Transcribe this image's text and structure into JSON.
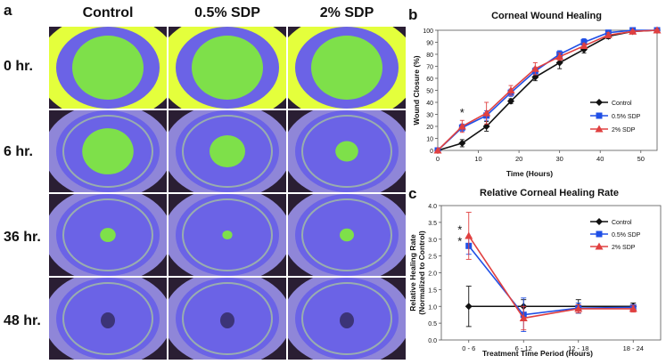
{
  "panel_a": {
    "letter": "a",
    "columns": [
      "Control",
      "0.5% SDP",
      "2% SDP"
    ],
    "rows": [
      "0 hr.",
      "6 hr.",
      "36 hr.",
      "48 hr."
    ],
    "photo_stain_extent": [
      [
        1.0,
        1.0,
        1.0
      ],
      [
        0.72,
        0.5,
        0.32
      ],
      [
        0.22,
        0.14,
        0.2
      ],
      [
        0.0,
        0.0,
        0.0
      ]
    ],
    "colors": {
      "stain": "#7ee04a",
      "iris": "#6b63e6",
      "sclera_halo": "#e4ff3c",
      "dark_bg": "#2a1e33"
    }
  },
  "chart_data": [
    {
      "letter": "b",
      "type": "line",
      "title": "Corneal Wound Healing",
      "xlabel": "Time (Hours)",
      "ylabel": "Wound Closure (%)",
      "xlim": [
        0,
        54
      ],
      "ylim": [
        0,
        100
      ],
      "xticks": [
        "0",
        "10",
        "20",
        "30",
        "40",
        "50"
      ],
      "xtick_values": [
        0,
        10,
        20,
        30,
        40,
        50
      ],
      "yticks": [
        "0",
        "10",
        "20",
        "30",
        "40",
        "50",
        "60",
        "70",
        "80",
        "90",
        "100"
      ],
      "ytick_values": [
        0,
        10,
        20,
        30,
        40,
        50,
        60,
        70,
        80,
        90,
        100
      ],
      "x": [
        0,
        6,
        12,
        18,
        24,
        30,
        36,
        42,
        48,
        54
      ],
      "series": [
        {
          "name": "Control",
          "color": "#111111",
          "marker": "diamond",
          "values": [
            0,
            6,
            20,
            41,
            61,
            73,
            84,
            95,
            99,
            100
          ],
          "errors": [
            0,
            3,
            4,
            2,
            3,
            5,
            3,
            2,
            1,
            1
          ]
        },
        {
          "name": "0.5% SDP",
          "color": "#1f4fe6",
          "marker": "square",
          "values": [
            0,
            19,
            29,
            48,
            66,
            80,
            90,
            98,
            100,
            100
          ],
          "errors": [
            0,
            3,
            4,
            3,
            3,
            3,
            3,
            2,
            1,
            1
          ]
        },
        {
          "name": "2% SDP",
          "color": "#e04040",
          "marker": "triangle",
          "values": [
            0,
            20,
            31,
            50,
            68,
            78,
            87,
            96,
            99,
            100
          ],
          "errors": [
            0,
            5,
            9,
            4,
            5,
            3,
            2,
            2,
            1,
            1
          ]
        }
      ],
      "annotations": [
        {
          "text": "*",
          "x": 6,
          "y": 31
        }
      ],
      "legend_position": "right"
    },
    {
      "letter": "c",
      "type": "line",
      "title": "Relative Corneal Healing Rate",
      "xlabel": "Treatment Time Period (Hours)",
      "ylabel": "Relative Healing Rate",
      "ylabel2": "(Normalized to Control)",
      "ylim": [
        0,
        4.0
      ],
      "categories": [
        "0 - 6",
        "6 - 12",
        "12 - 18",
        "18 - 24"
      ],
      "yticks": [
        "0.0",
        "0.5",
        "1.0",
        "1.5",
        "2.0",
        "2.5",
        "3.0",
        "3.5",
        "4.0"
      ],
      "ytick_values": [
        0,
        0.5,
        1.0,
        1.5,
        2.0,
        2.5,
        3.0,
        3.5,
        4.0
      ],
      "series": [
        {
          "name": "Control",
          "color": "#111111",
          "marker": "diamond",
          "values": [
            1.0,
            1.0,
            1.0,
            1.0
          ],
          "errors": [
            0.6,
            0.2,
            0.2,
            0.1
          ]
        },
        {
          "name": "0.5% SDP",
          "color": "#1f4fe6",
          "marker": "square",
          "values": [
            2.8,
            0.75,
            0.95,
            0.97
          ],
          "errors": [
            0.25,
            0.5,
            0.15,
            0.08
          ]
        },
        {
          "name": "2% SDP",
          "color": "#e04040",
          "marker": "triangle",
          "values": [
            3.1,
            0.65,
            0.93,
            0.93
          ],
          "errors": [
            0.7,
            0.35,
            0.12,
            0.1
          ]
        }
      ],
      "annotations": [
        {
          "text": "*",
          "category": 0,
          "y": 3.3
        },
        {
          "text": "*",
          "category": 0,
          "y": 2.95
        }
      ],
      "legend_position": "top-right"
    }
  ]
}
